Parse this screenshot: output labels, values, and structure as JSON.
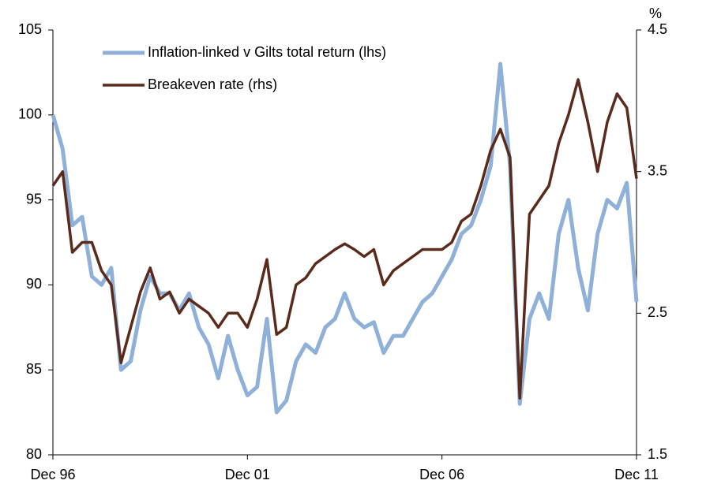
{
  "chart_data": {
    "type": "line",
    "categories": [
      "Dec 96",
      null,
      null,
      null,
      null,
      null,
      null,
      null,
      null,
      null,
      null,
      null,
      null,
      null,
      null,
      null,
      null,
      null,
      null,
      null,
      "Dec 01",
      null,
      null,
      null,
      null,
      null,
      null,
      null,
      null,
      null,
      null,
      null,
      null,
      null,
      null,
      null,
      null,
      null,
      null,
      null,
      "Dec 06",
      null,
      null,
      null,
      null,
      null,
      null,
      null,
      null,
      null,
      null,
      null,
      null,
      null,
      null,
      null,
      null,
      null,
      null,
      null,
      "Dec 11"
    ],
    "series": [
      {
        "name": "Inflation-linked v Gilts total return (lhs)",
        "color": "#8fb0d8",
        "axis": "y",
        "values": [
          100,
          98,
          93.5,
          94,
          90.5,
          90,
          91,
          85,
          85.5,
          88.5,
          90.5,
          89.5,
          89.5,
          88.5,
          89.5,
          87.5,
          86.5,
          84.5,
          87,
          85,
          83.5,
          84,
          88,
          82.5,
          83.2,
          85.5,
          86.5,
          86,
          87.5,
          88,
          89.5,
          88,
          87.5,
          87.8,
          86,
          87,
          87,
          88,
          89,
          89.5,
          90.5,
          91.5,
          93,
          93.5,
          95,
          97,
          103,
          97,
          83,
          88,
          89.5,
          88,
          93,
          95,
          91,
          88.5,
          93,
          95,
          94.5,
          96,
          89
        ]
      },
      {
        "name": "Breakeven rate (rhs)",
        "color": "#5a2a1a",
        "axis": "y2",
        "values": [
          3.4,
          3.5,
          2.93,
          3.0,
          3.0,
          2.8,
          2.7,
          2.15,
          2.4,
          2.65,
          2.82,
          2.6,
          2.65,
          2.5,
          2.6,
          2.55,
          2.5,
          2.4,
          2.5,
          2.5,
          2.4,
          2.6,
          2.88,
          2.35,
          2.4,
          2.7,
          2.75,
          2.85,
          2.9,
          2.95,
          2.99,
          2.95,
          2.9,
          2.95,
          2.7,
          2.8,
          2.85,
          2.9,
          2.95,
          2.95,
          2.95,
          3.0,
          3.15,
          3.2,
          3.4,
          3.65,
          3.8,
          3.6,
          1.9,
          3.2,
          3.3,
          3.4,
          3.7,
          3.9,
          4.15,
          3.85,
          3.5,
          3.85,
          4.05,
          3.95,
          3.45
        ]
      }
    ],
    "ylim": [
      80,
      105
    ],
    "yticks": [
      80,
      85,
      90,
      95,
      100,
      105
    ],
    "y2lim": [
      1.5,
      4.5
    ],
    "y2ticks": [
      1.5,
      2.5,
      3.5,
      4.5
    ],
    "y2label": "%"
  }
}
